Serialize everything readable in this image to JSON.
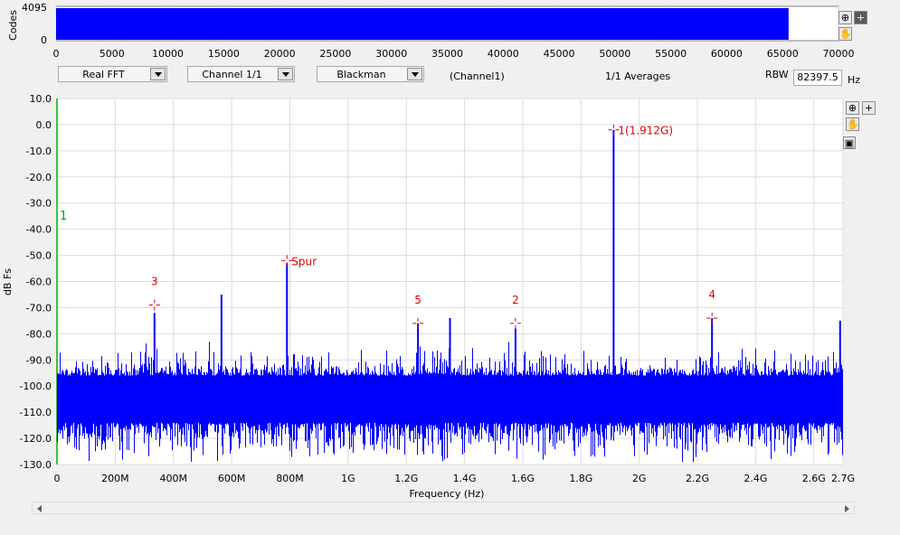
{
  "time_plot": {
    "ylabel": "Codes",
    "y_ticks": [
      "4095",
      "0"
    ],
    "ymax": 4095,
    "x_ticks": [
      0,
      5000,
      10000,
      15000,
      20000,
      25000,
      30000,
      35000,
      40000,
      45000,
      50000,
      55000,
      60000,
      65000,
      70000
    ],
    "x_tick_labels": [
      "0",
      "5000",
      "10000",
      "15000",
      "20000",
      "25000",
      "30000",
      "35000",
      "40000",
      "45000",
      "50000",
      "55000",
      "60000",
      "65000",
      "70000"
    ],
    "xlim": [
      0,
      70000
    ],
    "data_end": 65536,
    "fill_color": "#0000ff"
  },
  "controls": {
    "fft_type": "Real FFT",
    "channel": "Channel 1/1",
    "window": "Blackman",
    "channel_label": "(Channel1)",
    "averages": "1/1 Averages",
    "rbw_label": "RBW",
    "rbw_value": "82397.5",
    "rbw_unit": "Hz"
  },
  "toolbar": {
    "zoom_icon": "zoom-icon",
    "plus_icon": "plus-icon",
    "pan_icon": "hand-pan-icon",
    "zoom_reset_icon": "zoom-reset-icon"
  },
  "chart_data": {
    "type": "line",
    "xlabel": "Frequency (Hz)",
    "ylabel": "dB Fs",
    "ylim": [
      -130,
      10
    ],
    "xlim": [
      0,
      2700000000.0
    ],
    "grid": true,
    "series_color": "#0000ff",
    "y_ticks": [
      10,
      0,
      -10,
      -20,
      -30,
      -40,
      -50,
      -60,
      -70,
      -80,
      -90,
      -100,
      -110,
      -120,
      -130
    ],
    "y_tick_labels": [
      "10.0",
      "0.0",
      "-10.0",
      "-20.0",
      "-30.0",
      "-40.0",
      "-50.0",
      "-60.0",
      "-70.0",
      "-80.0",
      "-90.0",
      "-100.0",
      "-110.0",
      "-120.0",
      "-130.0"
    ],
    "x_ticks": [
      0,
      200000000.0,
      400000000.0,
      600000000.0,
      800000000.0,
      1000000000.0,
      1200000000.0,
      1400000000.0,
      1600000000.0,
      1800000000.0,
      2000000000.0,
      2200000000.0,
      2400000000.0,
      2600000000.0,
      2700000000.0
    ],
    "x_tick_labels": [
      "0",
      "200M",
      "400M",
      "600M",
      "800M",
      "1G",
      "1.2G",
      "1.4G",
      "1.6G",
      "1.8G",
      "2G",
      "2.2G",
      "2.4G",
      "2.6G",
      "2.7G"
    ],
    "noise_floor": -96,
    "spurs": [
      {
        "x": 335000000.0,
        "y": -72
      },
      {
        "x": 565000000.0,
        "y": -65
      },
      {
        "x": 790000000.0,
        "y": -53
      },
      {
        "x": 1240000000.0,
        "y": -76
      },
      {
        "x": 1350000000.0,
        "y": -74
      },
      {
        "x": 1575000000.0,
        "y": -78
      },
      {
        "x": 1912000000.0,
        "y": -2
      },
      {
        "x": 2250000000.0,
        "y": -74
      },
      {
        "x": 2690000000.0,
        "y": -75
      }
    ],
    "markers": [
      {
        "label": "1(1.912G)",
        "x": 1912000000.0,
        "y": -2,
        "pos": "right"
      },
      {
        "label": "Spur",
        "x": 790000000.0,
        "y": -52,
        "pos": "right"
      },
      {
        "label": "3",
        "x": 335000000.0,
        "y": -69,
        "pos": "above"
      },
      {
        "label": "5",
        "x": 1240000000.0,
        "y": -76,
        "pos": "above"
      },
      {
        "label": "2",
        "x": 1575000000.0,
        "y": -76,
        "pos": "above"
      },
      {
        "label": "4",
        "x": 2250000000.0,
        "y": -74,
        "pos": "above"
      }
    ],
    "side_label": "1",
    "marker_color": "#e00000",
    "side_label_color": "#00a000"
  }
}
